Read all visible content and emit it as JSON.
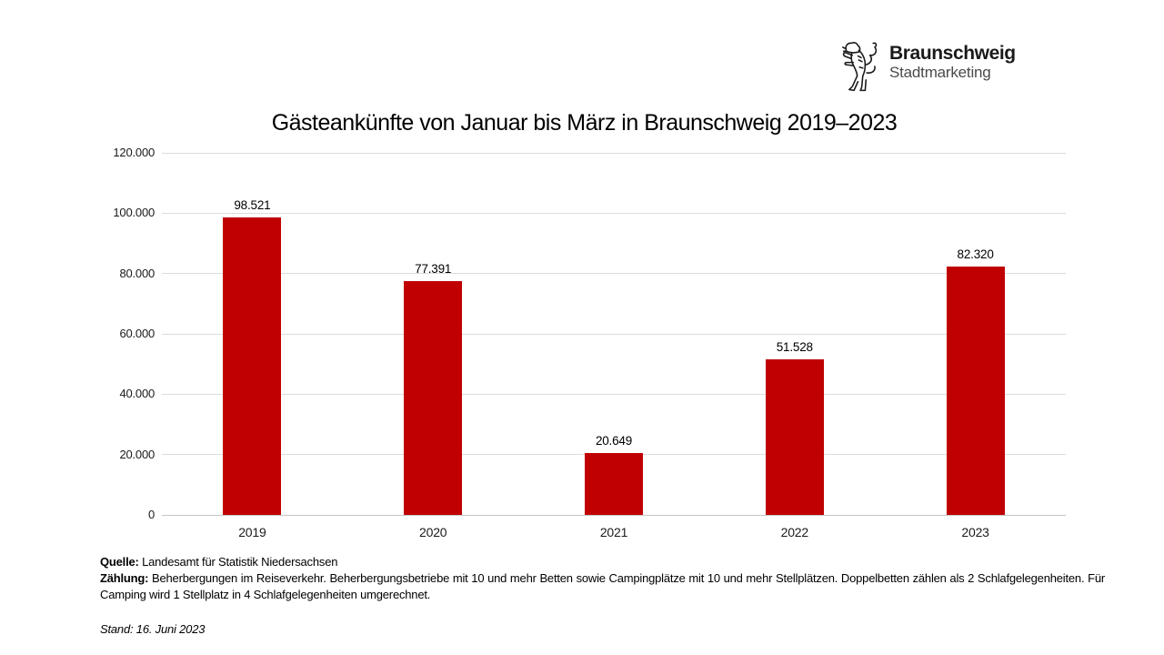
{
  "logo": {
    "brand": "Braunschweig",
    "subbrand": "Stadtmarketing",
    "icon": "braunschweig-lion-icon"
  },
  "chart_data": {
    "type": "bar",
    "title": "Gästeankünfte von Januar bis März in Braunschweig 2019–2023",
    "categories": [
      "2019",
      "2020",
      "2021",
      "2022",
      "2023"
    ],
    "values": [
      98521,
      77391,
      20649,
      51528,
      82320
    ],
    "value_labels": [
      "98.521",
      "77.391",
      "20.649",
      "51.528",
      "82.320"
    ],
    "xlabel": "",
    "ylabel": "",
    "ylim": [
      0,
      120000
    ],
    "ytick_step": 20000,
    "ytick_labels": [
      "0",
      "20.000",
      "40.000",
      "60.000",
      "80.000",
      "100.000",
      "120.000"
    ],
    "grid": true,
    "legend": "none",
    "bar_color": "#c00000",
    "gridline_color": "#dcdcdc"
  },
  "footer": {
    "source_label": "Quelle:",
    "source_text": "Landesamt für Statistik Niedersachsen",
    "count_label": "Zählung:",
    "count_text": "Beherbergungen im Reiseverkehr. Beherbergungsbetriebe mit 10 und mehr Betten sowie Campingplätze mit 10 und mehr Stellplätzen. Doppelbetten zählen als 2 Schlafgelegenheiten. Für Camping wird 1 Stellplatz in 4 Schlafgelegenheiten umgerechnet.",
    "date_text": "Stand: 16. Juni 2023"
  }
}
